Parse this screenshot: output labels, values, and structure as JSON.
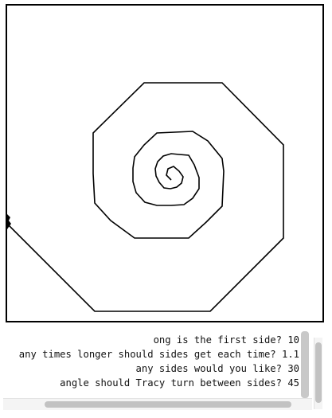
{
  "canvas": {
    "turtle_name": "Tracy",
    "cursor_icon": "turtle-cursor-icon",
    "stroke_color": "#000000"
  },
  "console": {
    "lines": [
      {
        "text": "ong is the first side? 10"
      },
      {
        "text": "any times longer should sides get each time? 1.1"
      },
      {
        "text": "any sides would you like? 30"
      },
      {
        "text": "angle should Tracy turn between sides? 45"
      }
    ]
  }
}
